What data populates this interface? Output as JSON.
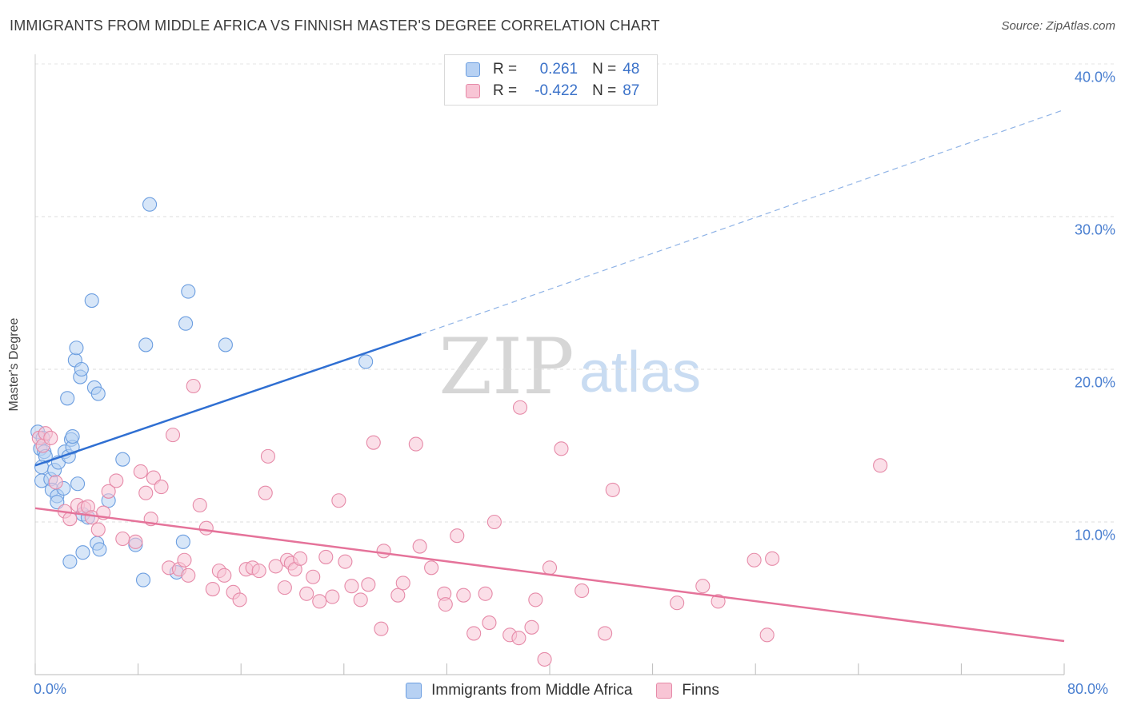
{
  "title": "IMMIGRANTS FROM MIDDLE AFRICA VS FINNISH MASTER'S DEGREE CORRELATION CHART",
  "source": "Source: ZipAtlas.com",
  "watermark": {
    "zip": "ZIP",
    "atlas": "atlas"
  },
  "legend": {
    "rows": [
      {
        "r_label": "R =",
        "r_value": "0.261",
        "n_label": "N =",
        "n_value": "48",
        "fill": "#b7d1f3",
        "stroke": "#6c9ee0"
      },
      {
        "r_label": "R =",
        "r_value": "-0.422",
        "n_label": "N =",
        "n_value": "87",
        "fill": "#f8c5d5",
        "stroke": "#e68aa8"
      }
    ]
  },
  "bottom_legend": [
    {
      "label": "Immigrants from Middle Africa",
      "fill": "#b7d1f3",
      "stroke": "#6c9ee0"
    },
    {
      "label": "Finns",
      "fill": "#f8c5d5",
      "stroke": "#e68aa8"
    }
  ],
  "chart_data": {
    "type": "scatter",
    "title": "IMMIGRANTS FROM MIDDLE AFRICA VS FINNISH MASTER'S DEGREE CORRELATION CHART",
    "xlabel": "",
    "ylabel": "Master's Degree",
    "xlim": [
      0,
      80
    ],
    "ylim": [
      0,
      40
    ],
    "x_tick_labels": [
      "0.0%",
      "80.0%"
    ],
    "y_ticks": [
      10,
      20,
      30,
      40
    ],
    "y_tick_labels": [
      "10.0%",
      "20.0%",
      "30.0%",
      "40.0%"
    ],
    "grid": true,
    "legend_position": "top-center",
    "series": [
      {
        "name": "Immigrants from Middle Africa",
        "color": "#6c9ee0",
        "fill": "#b7d1f3",
        "trend": {
          "x": [
            0,
            30
          ],
          "y": [
            13.7,
            22.3
          ],
          "extended_x": [
            30,
            80
          ],
          "extended_y": [
            22.3,
            37.0
          ]
        },
        "points": [
          [
            0.2,
            15.9
          ],
          [
            0.4,
            14.8
          ],
          [
            0.5,
            12.7
          ],
          [
            0.6,
            15.5
          ],
          [
            0.7,
            14.6
          ],
          [
            0.8,
            14.3
          ],
          [
            0.5,
            13.6
          ],
          [
            1.2,
            12.8
          ],
          [
            1.3,
            12.1
          ],
          [
            1.5,
            13.4
          ],
          [
            1.7,
            11.7
          ],
          [
            1.7,
            11.3
          ],
          [
            1.8,
            13.9
          ],
          [
            2.2,
            12.2
          ],
          [
            2.3,
            14.6
          ],
          [
            2.6,
            14.3
          ],
          [
            2.8,
            15.4
          ],
          [
            2.9,
            14.9
          ],
          [
            2.9,
            15.6
          ],
          [
            3.1,
            20.6
          ],
          [
            3.2,
            21.4
          ],
          [
            3.3,
            12.5
          ],
          [
            3.5,
            19.5
          ],
          [
            3.6,
            20.0
          ],
          [
            2.5,
            18.1
          ],
          [
            3.7,
            8.0
          ],
          [
            3.7,
            10.5
          ],
          [
            4.1,
            10.3
          ],
          [
            4.4,
            24.5
          ],
          [
            4.6,
            18.8
          ],
          [
            4.8,
            8.6
          ],
          [
            4.9,
            18.4
          ],
          [
            5.0,
            8.2
          ],
          [
            5.7,
            11.4
          ],
          [
            2.7,
            7.4
          ],
          [
            6.8,
            14.1
          ],
          [
            7.8,
            8.5
          ],
          [
            8.4,
            6.2
          ],
          [
            8.6,
            21.6
          ],
          [
            8.9,
            30.8
          ],
          [
            11.0,
            6.7
          ],
          [
            11.5,
            8.7
          ],
          [
            11.7,
            23.0
          ],
          [
            11.9,
            25.1
          ],
          [
            14.8,
            21.6
          ],
          [
            25.7,
            20.5
          ]
        ]
      },
      {
        "name": "Finns",
        "color": "#e68aa8",
        "fill": "#f8c5d5",
        "trend": {
          "x": [
            0,
            80
          ],
          "y": [
            10.9,
            2.2
          ]
        },
        "points": [
          [
            0.3,
            15.5
          ],
          [
            0.6,
            15.0
          ],
          [
            0.8,
            15.8
          ],
          [
            1.2,
            15.5
          ],
          [
            1.6,
            12.6
          ],
          [
            2.3,
            10.7
          ],
          [
            2.7,
            10.2
          ],
          [
            3.3,
            11.1
          ],
          [
            3.8,
            10.9
          ],
          [
            4.1,
            11.0
          ],
          [
            4.4,
            10.3
          ],
          [
            4.9,
            9.5
          ],
          [
            5.3,
            10.6
          ],
          [
            5.7,
            12.0
          ],
          [
            6.3,
            12.7
          ],
          [
            6.8,
            8.9
          ],
          [
            7.8,
            8.7
          ],
          [
            8.2,
            13.3
          ],
          [
            8.6,
            11.9
          ],
          [
            9.0,
            10.2
          ],
          [
            9.2,
            12.9
          ],
          [
            9.8,
            12.3
          ],
          [
            10.4,
            7.0
          ],
          [
            10.7,
            15.7
          ],
          [
            11.2,
            6.9
          ],
          [
            11.6,
            7.5
          ],
          [
            11.9,
            6.5
          ],
          [
            12.3,
            18.9
          ],
          [
            12.8,
            11.1
          ],
          [
            13.3,
            9.6
          ],
          [
            13.8,
            5.6
          ],
          [
            14.3,
            6.8
          ],
          [
            14.7,
            6.5
          ],
          [
            15.4,
            5.4
          ],
          [
            15.9,
            4.9
          ],
          [
            16.4,
            6.9
          ],
          [
            16.9,
            7.0
          ],
          [
            17.4,
            6.8
          ],
          [
            17.9,
            11.9
          ],
          [
            18.1,
            14.3
          ],
          [
            18.7,
            7.1
          ],
          [
            19.4,
            5.7
          ],
          [
            19.6,
            7.5
          ],
          [
            19.9,
            7.3
          ],
          [
            20.2,
            6.9
          ],
          [
            20.6,
            7.6
          ],
          [
            21.1,
            5.3
          ],
          [
            21.6,
            6.4
          ],
          [
            22.1,
            4.8
          ],
          [
            22.6,
            7.7
          ],
          [
            23.1,
            5.1
          ],
          [
            23.6,
            11.4
          ],
          [
            24.1,
            7.4
          ],
          [
            24.6,
            5.8
          ],
          [
            25.3,
            4.9
          ],
          [
            25.9,
            5.9
          ],
          [
            26.3,
            15.2
          ],
          [
            26.9,
            3.0
          ],
          [
            27.1,
            8.1
          ],
          [
            28.2,
            5.2
          ],
          [
            28.6,
            6.0
          ],
          [
            29.6,
            15.1
          ],
          [
            29.9,
            8.4
          ],
          [
            30.8,
            7.0
          ],
          [
            31.8,
            5.3
          ],
          [
            31.9,
            4.6
          ],
          [
            32.8,
            9.1
          ],
          [
            33.3,
            5.2
          ],
          [
            34.1,
            2.7
          ],
          [
            35.0,
            5.3
          ],
          [
            35.3,
            3.4
          ],
          [
            35.7,
            10.0
          ],
          [
            36.9,
            2.6
          ],
          [
            37.6,
            2.4
          ],
          [
            37.7,
            17.5
          ],
          [
            38.6,
            3.1
          ],
          [
            38.9,
            4.9
          ],
          [
            39.6,
            1.0
          ],
          [
            40.0,
            7.0
          ],
          [
            40.9,
            14.8
          ],
          [
            42.5,
            5.5
          ],
          [
            44.3,
            2.7
          ],
          [
            44.9,
            12.1
          ],
          [
            49.9,
            4.7
          ],
          [
            51.9,
            5.8
          ],
          [
            53.1,
            4.8
          ],
          [
            55.9,
            7.5
          ],
          [
            56.9,
            2.6
          ],
          [
            57.3,
            7.6
          ],
          [
            65.7,
            13.7
          ]
        ]
      }
    ]
  }
}
